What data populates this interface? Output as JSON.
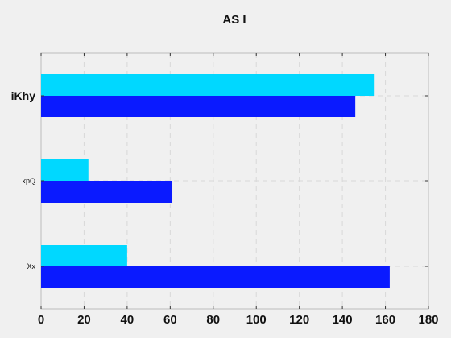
{
  "chart_data": {
    "type": "bar",
    "orientation": "horizontal",
    "title": "AS I",
    "xlabel": "",
    "ylabel": "",
    "categories": [
      "iKhy",
      "kpQ",
      "Xx"
    ],
    "category_label_sizes": [
      "large",
      "small",
      "small"
    ],
    "series": [
      {
        "color": "#00d8ff",
        "values": [
          155,
          22,
          40
        ]
      },
      {
        "color": "#0a1aff",
        "values": [
          146,
          61,
          162
        ]
      }
    ],
    "xlim": [
      0,
      180
    ],
    "xticks": [
      0,
      20,
      40,
      60,
      80,
      100,
      120,
      140,
      160,
      180
    ],
    "grid": true
  }
}
